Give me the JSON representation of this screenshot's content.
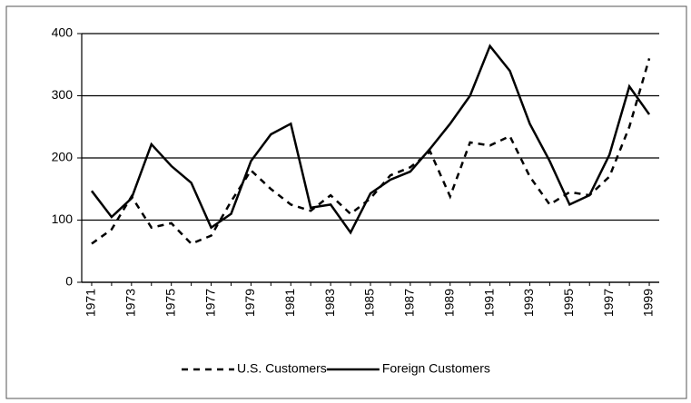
{
  "chart_data": {
    "type": "line",
    "categories": [
      "1971",
      null,
      "1973",
      null,
      "1975",
      null,
      "1977",
      null,
      "1979",
      null,
      "1981",
      null,
      "1983",
      null,
      "1985",
      null,
      "1987",
      null,
      "1989",
      null,
      "1991",
      null,
      "1993",
      null,
      "1995",
      null,
      "1997",
      null,
      "1999"
    ],
    "series": [
      {
        "name": "U.S. Customers",
        "color": "#000000",
        "style": "dashed",
        "values": [
          62,
          85,
          138,
          88,
          95,
          62,
          75,
          130,
          180,
          150,
          125,
          115,
          140,
          110,
          135,
          172,
          185,
          210,
          138,
          225,
          220,
          235,
          170,
          125,
          145,
          140,
          170,
          250,
          360
        ]
      },
      {
        "name": "Foreign Customers",
        "color": "#000000",
        "style": "solid",
        "values": [
          147,
          105,
          135,
          222,
          187,
          160,
          88,
          110,
          195,
          238,
          255,
          120,
          125,
          80,
          143,
          165,
          178,
          215,
          255,
          300,
          380,
          340,
          255,
          195,
          125,
          140,
          205,
          315,
          270
        ]
      }
    ],
    "ylim": [
      0,
      400
    ],
    "yticks": [
      0,
      100,
      200,
      300,
      400
    ],
    "grid": true,
    "legend": "bottom"
  }
}
